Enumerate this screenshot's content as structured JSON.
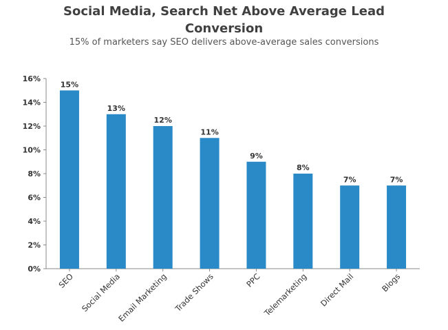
{
  "chart_data": {
    "type": "bar",
    "title_lines": [
      "Social Media, Search Net Above Average Lead",
      "Conversion"
    ],
    "subtitle": "15% of marketers say SEO delivers above-average sales conversions",
    "categories": [
      "SEO",
      "Social Media",
      "Email Marketing",
      "Trade Shows",
      "PPC",
      "Telemarketing",
      "Direct Mail",
      "Blogs"
    ],
    "values": [
      15,
      13,
      12,
      11,
      9,
      8,
      7,
      7
    ],
    "data_labels": [
      "15%",
      "13%",
      "12%",
      "11%",
      "9%",
      "8%",
      "7%",
      "7%"
    ],
    "ylim": [
      0,
      16
    ],
    "y_ticks": [
      0,
      2,
      4,
      6,
      8,
      10,
      12,
      14,
      16
    ],
    "y_tick_labels": [
      "0%",
      "2%",
      "4%",
      "6%",
      "8%",
      "10%",
      "12%",
      "14%",
      "16%"
    ],
    "bar_color": "#2a8ac8",
    "axis_color": "#888888",
    "grid": false,
    "legend": "none"
  }
}
